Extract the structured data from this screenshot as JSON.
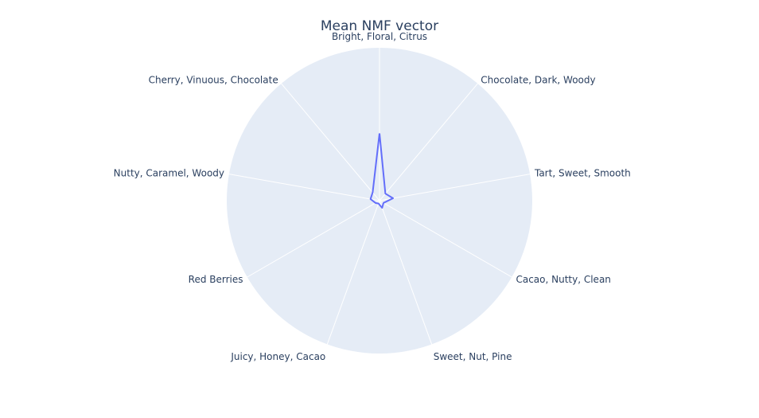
{
  "chart_data": {
    "type": "radar",
    "title": "Mean NMF vector",
    "categories": [
      "Bright, Floral, Citrus",
      "Chocolate, Dark, Woody",
      "Tart, Sweet, Smooth",
      "Cacao, Nutty, Clean",
      "Sweet, Nut, Pine",
      "Juicy, Honey, Cacao",
      "Red Berries",
      "Nutty, Caramel, Woody",
      "Cherry, Vinuous, Chocolate"
    ],
    "series": [
      {
        "values": [
          0.44,
          0.06,
          0.09,
          0.03,
          0.05,
          0.02,
          0.03,
          0.06,
          0.07
        ]
      }
    ],
    "rrange": [
      0,
      1
    ],
    "grid": true,
    "colors": {
      "polar_bg": "#e5ecf6",
      "grid": "#ffffff",
      "line": "#636efa",
      "text": "#2a3f5f"
    }
  }
}
